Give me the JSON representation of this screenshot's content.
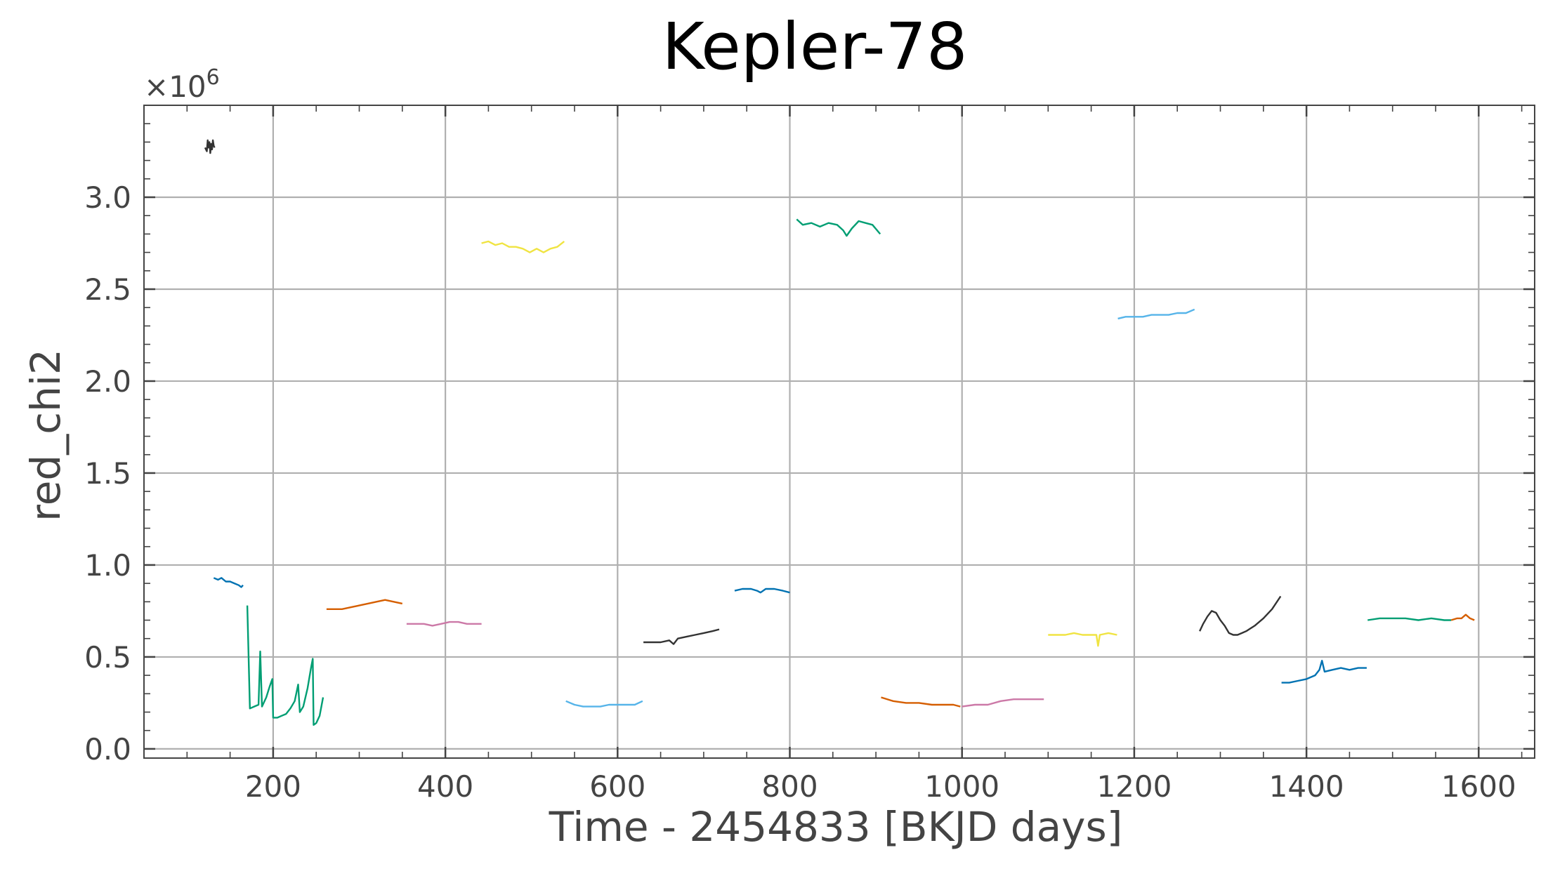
{
  "chart_data": {
    "type": "line",
    "title": "Kepler-78",
    "xlabel": "Time - 2454833 [BKJD days]",
    "ylabel": "red_chi2",
    "y_multiplier_label": "×10",
    "y_multiplier_exponent": "6",
    "xlim": [
      50,
      1665
    ],
    "ylim": [
      -0.05,
      3.5
    ],
    "x_ticks": [
      200,
      400,
      600,
      800,
      1000,
      1200,
      1400,
      1600
    ],
    "x_tick_labels": [
      "200",
      "400",
      "600",
      "800",
      "1000",
      "1200",
      "1400",
      "1600"
    ],
    "y_ticks": [
      0.0,
      0.5,
      1.0,
      1.5,
      2.0,
      2.5,
      3.0
    ],
    "y_tick_labels": [
      "0.0",
      "0.5",
      "1.0",
      "1.5",
      "2.0",
      "2.5",
      "3.0"
    ],
    "grid": true,
    "legend": "none",
    "y_units": "x1e6",
    "series": [
      {
        "color": "#333333",
        "points": [
          [
            121,
            3.27
          ],
          [
            123,
            3.25
          ],
          [
            124,
            3.31
          ],
          [
            125,
            3.27
          ],
          [
            126,
            3.3
          ],
          [
            127,
            3.24
          ],
          [
            128,
            3.29
          ],
          [
            129,
            3.26
          ],
          [
            130,
            3.31
          ],
          [
            131,
            3.28
          ],
          [
            132,
            3.27
          ]
        ]
      },
      {
        "color": "#0072b2",
        "points": [
          [
            131,
            0.93
          ],
          [
            136,
            0.92
          ],
          [
            140,
            0.93
          ],
          [
            145,
            0.91
          ],
          [
            150,
            0.91
          ],
          [
            155,
            0.9
          ],
          [
            160,
            0.89
          ],
          [
            163,
            0.88
          ],
          [
            165,
            0.89
          ]
        ]
      },
      {
        "color": "#009e73",
        "points": [
          [
            170,
            0.78
          ],
          [
            173,
            0.22
          ],
          [
            178,
            0.23
          ],
          [
            183,
            0.24
          ],
          [
            185,
            0.53
          ],
          [
            187,
            0.23
          ],
          [
            192,
            0.28
          ],
          [
            196,
            0.34
          ],
          [
            199,
            0.38
          ],
          [
            200,
            0.17
          ],
          [
            205,
            0.17
          ],
          [
            210,
            0.18
          ],
          [
            215,
            0.19
          ],
          [
            220,
            0.22
          ],
          [
            225,
            0.26
          ],
          [
            229,
            0.35
          ],
          [
            231,
            0.2
          ],
          [
            235,
            0.23
          ],
          [
            240,
            0.33
          ],
          [
            244,
            0.44
          ],
          [
            246,
            0.49
          ],
          [
            247,
            0.13
          ],
          [
            250,
            0.14
          ],
          [
            254,
            0.18
          ],
          [
            258,
            0.28
          ]
        ]
      },
      {
        "color": "#d55e00",
        "points": [
          [
            262,
            0.76
          ],
          [
            270,
            0.76
          ],
          [
            280,
            0.76
          ],
          [
            290,
            0.77
          ],
          [
            300,
            0.78
          ],
          [
            310,
            0.79
          ],
          [
            320,
            0.8
          ],
          [
            330,
            0.81
          ],
          [
            340,
            0.8
          ],
          [
            350,
            0.79
          ]
        ]
      },
      {
        "color": "#cc79a7",
        "points": [
          [
            355,
            0.68
          ],
          [
            365,
            0.68
          ],
          [
            375,
            0.68
          ],
          [
            385,
            0.67
          ],
          [
            395,
            0.68
          ],
          [
            405,
            0.69
          ],
          [
            415,
            0.69
          ],
          [
            425,
            0.68
          ],
          [
            435,
            0.68
          ],
          [
            442,
            0.68
          ]
        ]
      },
      {
        "color": "#f0e442",
        "points": [
          [
            442,
            2.75
          ],
          [
            450,
            2.76
          ],
          [
            458,
            2.74
          ],
          [
            466,
            2.75
          ],
          [
            474,
            2.73
          ],
          [
            482,
            2.73
          ],
          [
            490,
            2.72
          ],
          [
            498,
            2.7
          ],
          [
            506,
            2.72
          ],
          [
            514,
            2.7
          ],
          [
            522,
            2.72
          ],
          [
            530,
            2.73
          ],
          [
            538,
            2.76
          ]
        ]
      },
      {
        "color": "#56b4e9",
        "points": [
          [
            540,
            0.26
          ],
          [
            550,
            0.24
          ],
          [
            560,
            0.23
          ],
          [
            570,
            0.23
          ],
          [
            580,
            0.23
          ],
          [
            590,
            0.24
          ],
          [
            600,
            0.24
          ],
          [
            610,
            0.24
          ],
          [
            620,
            0.24
          ],
          [
            629,
            0.26
          ]
        ]
      },
      {
        "color": "#333333",
        "points": [
          [
            630,
            0.58
          ],
          [
            640,
            0.58
          ],
          [
            650,
            0.58
          ],
          [
            660,
            0.59
          ],
          [
            665,
            0.57
          ],
          [
            670,
            0.6
          ],
          [
            680,
            0.61
          ],
          [
            690,
            0.62
          ],
          [
            700,
            0.63
          ],
          [
            710,
            0.64
          ],
          [
            718,
            0.65
          ]
        ]
      },
      {
        "color": "#0072b2",
        "points": [
          [
            736,
            0.86
          ],
          [
            745,
            0.87
          ],
          [
            755,
            0.87
          ],
          [
            762,
            0.86
          ],
          [
            766,
            0.85
          ],
          [
            772,
            0.87
          ],
          [
            782,
            0.87
          ],
          [
            792,
            0.86
          ],
          [
            800,
            0.85
          ]
        ]
      },
      {
        "color": "#009e73",
        "points": [
          [
            808,
            2.88
          ],
          [
            815,
            2.85
          ],
          [
            825,
            2.86
          ],
          [
            835,
            2.84
          ],
          [
            845,
            2.86
          ],
          [
            855,
            2.85
          ],
          [
            862,
            2.82
          ],
          [
            866,
            2.79
          ],
          [
            872,
            2.83
          ],
          [
            880,
            2.87
          ],
          [
            888,
            2.86
          ],
          [
            896,
            2.85
          ],
          [
            905,
            2.8
          ]
        ]
      },
      {
        "color": "#d55e00",
        "points": [
          [
            906,
            0.28
          ],
          [
            920,
            0.26
          ],
          [
            935,
            0.25
          ],
          [
            950,
            0.25
          ],
          [
            965,
            0.24
          ],
          [
            980,
            0.24
          ],
          [
            990,
            0.24
          ],
          [
            998,
            0.23
          ]
        ]
      },
      {
        "color": "#cc79a7",
        "points": [
          [
            1000,
            0.23
          ],
          [
            1015,
            0.24
          ],
          [
            1030,
            0.24
          ],
          [
            1045,
            0.26
          ],
          [
            1060,
            0.27
          ],
          [
            1075,
            0.27
          ],
          [
            1085,
            0.27
          ],
          [
            1095,
            0.27
          ]
        ]
      },
      {
        "color": "#f0e442",
        "points": [
          [
            1100,
            0.62
          ],
          [
            1110,
            0.62
          ],
          [
            1120,
            0.62
          ],
          [
            1130,
            0.63
          ],
          [
            1140,
            0.62
          ],
          [
            1150,
            0.62
          ],
          [
            1156,
            0.62
          ],
          [
            1158,
            0.56
          ],
          [
            1160,
            0.62
          ],
          [
            1170,
            0.63
          ],
          [
            1180,
            0.62
          ]
        ]
      },
      {
        "color": "#56b4e9",
        "points": [
          [
            1181,
            2.34
          ],
          [
            1190,
            2.35
          ],
          [
            1200,
            2.35
          ],
          [
            1210,
            2.35
          ],
          [
            1220,
            2.36
          ],
          [
            1230,
            2.36
          ],
          [
            1240,
            2.36
          ],
          [
            1250,
            2.37
          ],
          [
            1260,
            2.37
          ],
          [
            1270,
            2.39
          ]
        ]
      },
      {
        "color": "#333333",
        "points": [
          [
            1276,
            0.64
          ],
          [
            1280,
            0.68
          ],
          [
            1285,
            0.72
          ],
          [
            1290,
            0.75
          ],
          [
            1295,
            0.74
          ],
          [
            1300,
            0.7
          ],
          [
            1305,
            0.67
          ],
          [
            1310,
            0.63
          ],
          [
            1315,
            0.62
          ],
          [
            1320,
            0.62
          ],
          [
            1325,
            0.63
          ],
          [
            1330,
            0.64
          ],
          [
            1340,
            0.67
          ],
          [
            1350,
            0.71
          ],
          [
            1360,
            0.76
          ],
          [
            1370,
            0.83
          ]
        ]
      },
      {
        "color": "#0072b2",
        "points": [
          [
            1371,
            0.36
          ],
          [
            1380,
            0.36
          ],
          [
            1390,
            0.37
          ],
          [
            1400,
            0.38
          ],
          [
            1410,
            0.4
          ],
          [
            1415,
            0.43
          ],
          [
            1418,
            0.48
          ],
          [
            1421,
            0.42
          ],
          [
            1430,
            0.43
          ],
          [
            1440,
            0.44
          ],
          [
            1450,
            0.43
          ],
          [
            1460,
            0.44
          ],
          [
            1470,
            0.44
          ]
        ]
      },
      {
        "color": "#009e73",
        "points": [
          [
            1471,
            0.7
          ],
          [
            1485,
            0.71
          ],
          [
            1500,
            0.71
          ],
          [
            1515,
            0.71
          ],
          [
            1530,
            0.7
          ],
          [
            1545,
            0.71
          ],
          [
            1560,
            0.7
          ],
          [
            1568,
            0.7
          ]
        ]
      },
      {
        "color": "#d55e00",
        "points": [
          [
            1568,
            0.7
          ],
          [
            1575,
            0.71
          ],
          [
            1580,
            0.71
          ],
          [
            1585,
            0.73
          ],
          [
            1590,
            0.71
          ],
          [
            1595,
            0.7
          ]
        ]
      }
    ]
  }
}
